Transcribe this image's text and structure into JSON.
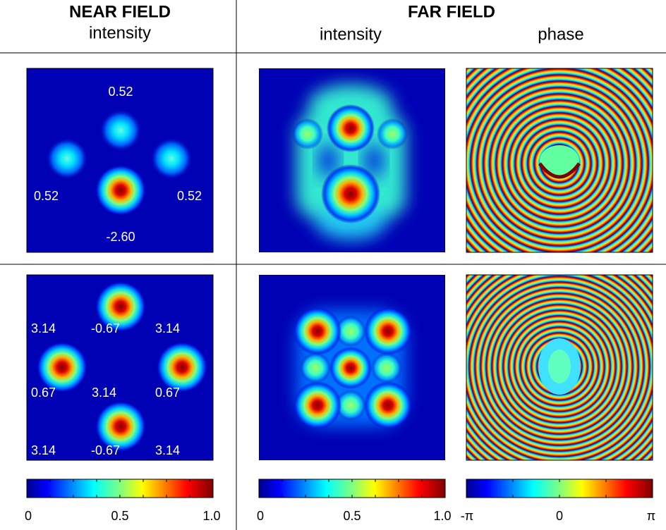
{
  "header": {
    "near_field": {
      "title": "NEAR FIELD",
      "subtitle": "intensity"
    },
    "far_field": {
      "title": "FAR FIELD",
      "columns": [
        "intensity",
        "phase"
      ]
    }
  },
  "rows": [
    {
      "near_field_labels": [
        "0.52",
        "0.52",
        "0.52",
        "-2.60"
      ]
    },
    {
      "near_field_labels": [
        "3.14",
        "-0.67",
        "3.14",
        "0.67",
        "3.14",
        "0.67",
        "3.14",
        "-0.67",
        "3.14"
      ]
    }
  ],
  "colorbars": [
    {
      "labels": [
        "0",
        "0.5",
        "1.0"
      ]
    },
    {
      "labels": [
        "0",
        "0.5",
        "1.0"
      ]
    },
    {
      "labels": [
        "-π",
        "0",
        "π"
      ]
    }
  ]
}
